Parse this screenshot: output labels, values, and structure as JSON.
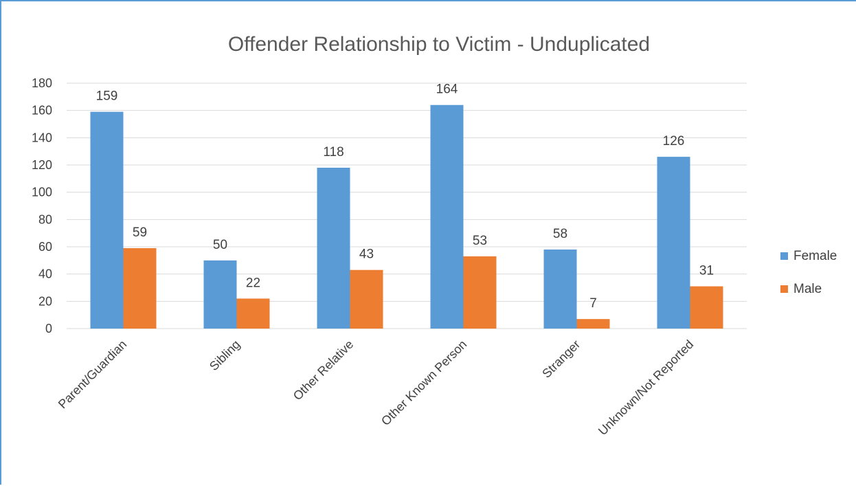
{
  "chart_data": {
    "type": "bar",
    "title": "Offender Relationship to Victim - Unduplicated",
    "categories": [
      "Parent/Guardian",
      "Sibling",
      "Other Relative",
      "Other Known Person",
      "Stranger",
      "Unknown/Not Reported"
    ],
    "series": [
      {
        "name": "Female",
        "color": "#5b9bd5",
        "values": [
          159,
          50,
          118,
          164,
          58,
          126
        ]
      },
      {
        "name": "Male",
        "color": "#ed7d31",
        "values": [
          59,
          22,
          43,
          53,
          7,
          31
        ]
      }
    ],
    "ylim": [
      0,
      180
    ],
    "yticks": [
      "0",
      "20",
      "40",
      "60",
      "80",
      "100",
      "120",
      "140",
      "160",
      "180"
    ],
    "data_labels": true,
    "grid": true,
    "legend_position": "right"
  }
}
